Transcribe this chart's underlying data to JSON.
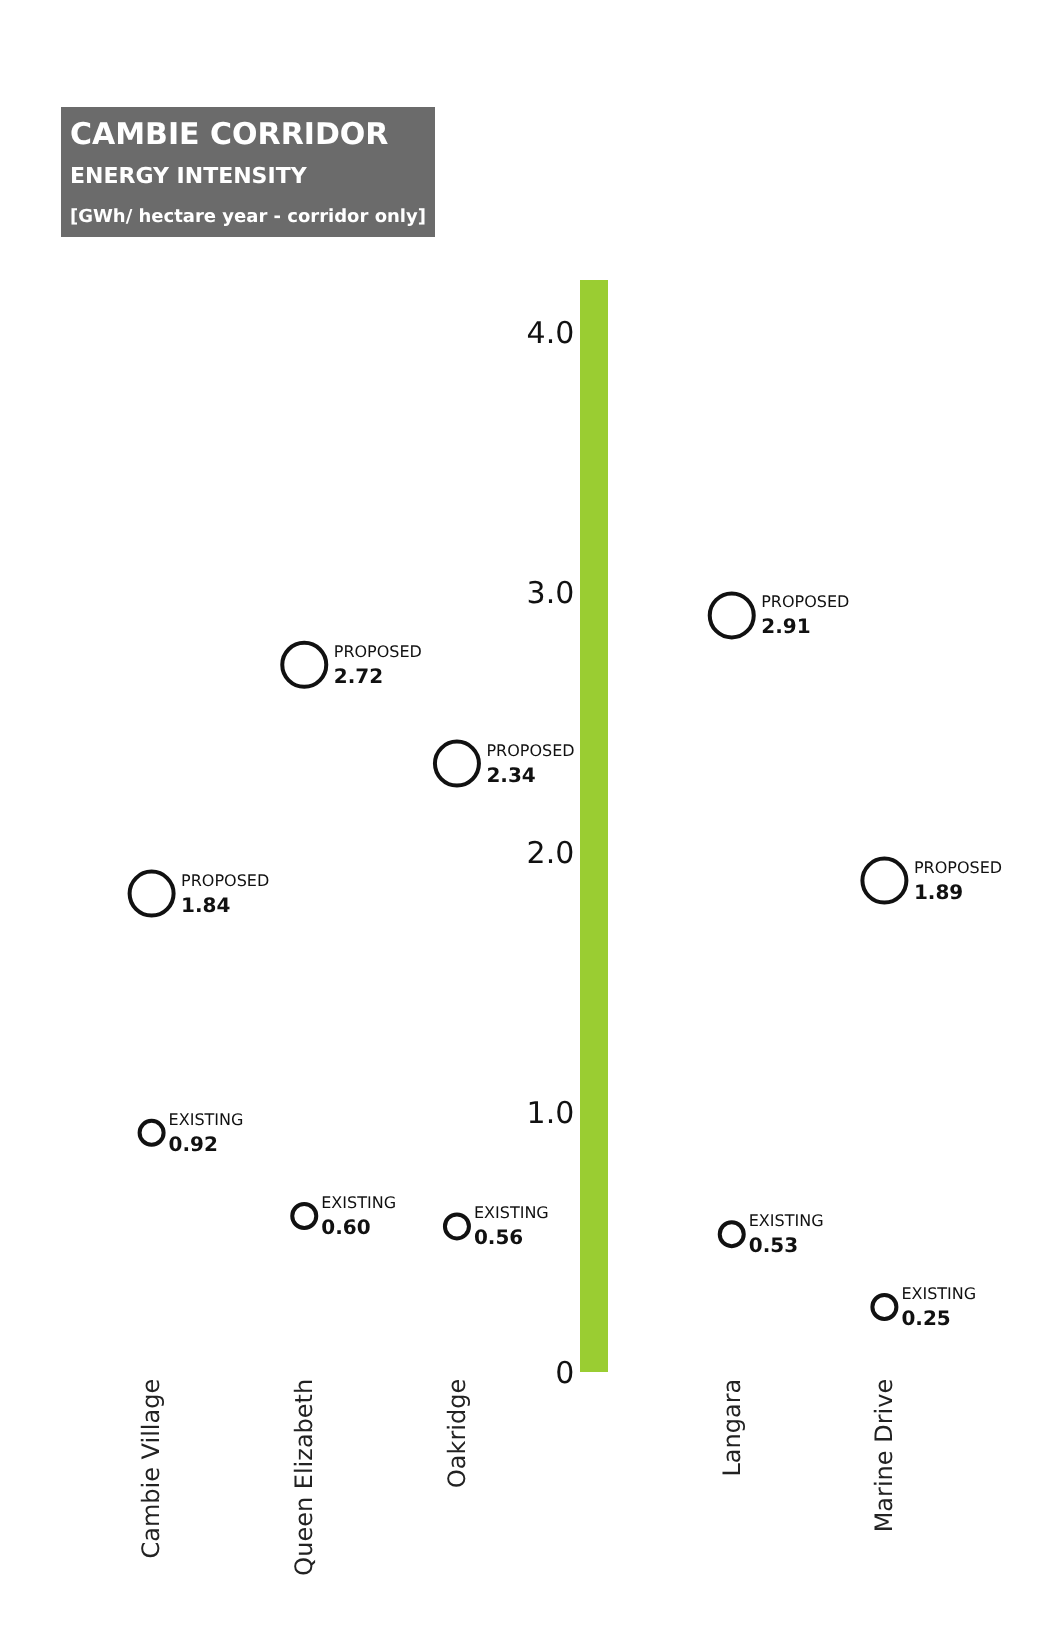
{
  "chart_data": {
    "type": "scatter",
    "title": "CAMBIE CORRIDOR",
    "subtitle": "ENERGY INTENSITY",
    "ylabel": "[GWh/ hectare year - corridor only]",
    "categories": [
      "Cambie Village",
      "Queen Elizabeth",
      "Oakridge",
      "Langara",
      "Marine Drive"
    ],
    "series": [
      {
        "name": "PROPOSED",
        "color": "#111111",
        "values": [
          1.84,
          2.72,
          2.34,
          2.91,
          1.89
        ],
        "value_labels": [
          "1.84",
          "2.72",
          "2.34",
          "2.91",
          "1.89"
        ]
      },
      {
        "name": "EXISTING",
        "color": "#111111",
        "values": [
          0.92,
          0.6,
          0.56,
          0.53,
          0.25
        ],
        "value_labels": [
          "0.92",
          "0.60",
          "0.56",
          "0.53",
          "0.25"
        ]
      }
    ],
    "ylim": [
      0,
      4.2
    ],
    "yticks": [
      {
        "value": 0,
        "label": "0"
      },
      {
        "value": 1,
        "label": "1.0"
      },
      {
        "value": 2,
        "label": "2.0"
      },
      {
        "value": 3,
        "label": "3.0"
      },
      {
        "value": 4,
        "label": "4.0"
      }
    ],
    "legend": false,
    "marker": "circle"
  }
}
